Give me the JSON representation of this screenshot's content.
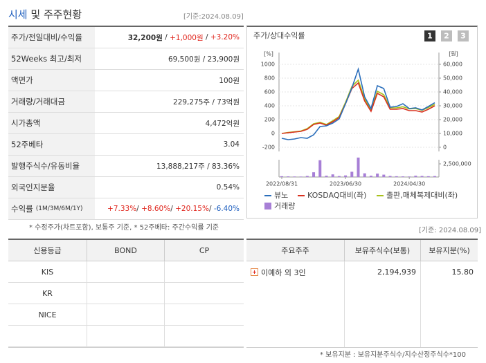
{
  "header": {
    "title_main": "시세",
    "title_rest": "및 주주현황",
    "date": "[기준:2024.08.09]"
  },
  "quote_table": {
    "rows": [
      {
        "label": "주가/전일대비/수익률",
        "parts": [
          {
            "text": "32,200원",
            "bold": true
          },
          {
            "text": " / "
          },
          {
            "text": "+1,000원",
            "color": "#e0261d"
          },
          {
            "text": " / "
          },
          {
            "text": "+3.20%",
            "color": "#e0261d"
          }
        ]
      },
      {
        "label": "52Weeks 최고/최저",
        "parts": [
          {
            "text": "69,500원 / 23,900원"
          }
        ]
      },
      {
        "label": "액면가",
        "parts": [
          {
            "text": "100원"
          }
        ]
      },
      {
        "label": "거래량/거래대금",
        "parts": [
          {
            "text": "229,275주 / 73억원"
          }
        ]
      },
      {
        "label": "시가총액",
        "parts": [
          {
            "text": "4,472억원"
          }
        ]
      },
      {
        "label": "52주베타",
        "parts": [
          {
            "text": "3.04"
          }
        ]
      },
      {
        "label": "발행주식수/유동비율",
        "parts": [
          {
            "text": "13,888,217주 / 83.36%"
          }
        ]
      },
      {
        "label": "외국인지분율",
        "parts": [
          {
            "text": "0.54%"
          }
        ]
      },
      {
        "label": "수익률",
        "label_small": "(1M/3M/6M/1Y)",
        "parts": [
          {
            "text": "+7.33%",
            "color": "#e0261d"
          },
          {
            "text": "/ "
          },
          {
            "text": "+8.60%",
            "color": "#e0261d"
          },
          {
            "text": "/ "
          },
          {
            "text": "+20.15%",
            "color": "#e0261d"
          },
          {
            "text": "/ "
          },
          {
            "text": "-6.40%",
            "color": "#1f5fbf"
          }
        ]
      }
    ]
  },
  "quote_note": "* 수정주가(차트포함), 보통주 기준, * 52주베타: 주간수익률 기준",
  "chart_data": {
    "type": "line",
    "title": "주가/상대수익률",
    "buttons": [
      "1",
      "2",
      "3"
    ],
    "ylabel": "[%]",
    "y2label": "[원]",
    "x": [
      0,
      1,
      2,
      3,
      4,
      5,
      6,
      7,
      8,
      9,
      10,
      11,
      12,
      13,
      14,
      15,
      16,
      17,
      18,
      19,
      20,
      21,
      22,
      23,
      24
    ],
    "xlim": [
      0,
      24
    ],
    "xticks": [
      {
        "value": 0,
        "label": "2022/08/31"
      },
      {
        "value": 10,
        "label": "2023/06/30"
      },
      {
        "value": 20,
        "label": "2024/04/30"
      }
    ],
    "ylim": [
      -200,
      1000
    ],
    "yticks": [
      -200,
      0,
      200,
      400,
      600,
      800,
      1000
    ],
    "y2lim": [
      0,
      60000
    ],
    "y2ticks": [
      0,
      {
        "value": 10000,
        "label": "10,000"
      },
      {
        "value": 20000,
        "label": "20,000"
      },
      {
        "value": 30000,
        "label": "30,000"
      },
      {
        "value": 40000,
        "label": "40,000"
      },
      {
        "value": 50000,
        "label": "50,000"
      },
      {
        "value": 60000,
        "label": "60,000"
      }
    ],
    "grid": true,
    "series": [
      {
        "name": "뷰노",
        "color": "#2a6ebb",
        "axis": "y2",
        "values": [
          6500,
          5500,
          6000,
          7000,
          6500,
          9000,
          15000,
          15500,
          17500,
          20500,
          31500,
          43000,
          56500,
          36500,
          28000,
          44500,
          42500,
          29000,
          29500,
          31500,
          28000,
          28500,
          27000,
          29500,
          32200
        ]
      },
      {
        "name": "KOSDAQ대비(좌)",
        "color": "#d9311f",
        "values": [
          0,
          10,
          20,
          30,
          60,
          130,
          150,
          120,
          170,
          230,
          430,
          650,
          730,
          470,
          320,
          580,
          530,
          350,
          350,
          360,
          330,
          330,
          310,
          350,
          400
        ]
      },
      {
        "name": "출판,매체복제대비(좌)",
        "color": "#a8c11a",
        "values": [
          0,
          15,
          25,
          35,
          70,
          140,
          160,
          130,
          185,
          245,
          450,
          680,
          770,
          500,
          340,
          610,
          560,
          370,
          370,
          385,
          355,
          360,
          335,
          375,
          420
        ]
      }
    ],
    "volume": {
      "name": "거래량",
      "color": "#a77fd6",
      "lim": [
        0,
        2500000
      ],
      "ticks": [
        {
          "value": 2500000,
          "label": "2,500,000"
        }
      ],
      "values": [
        150000,
        120000,
        100000,
        90000,
        200000,
        900000,
        3200000,
        250000,
        500000,
        180000,
        300000,
        1000000,
        3700000,
        700000,
        250000,
        650000,
        450000,
        200000,
        150000,
        120000,
        100000,
        250000,
        200000,
        150000,
        180000
      ]
    }
  },
  "credit_table": {
    "headers": [
      "신용등급",
      "BOND",
      "CP"
    ],
    "rows": [
      [
        "KIS"
      ],
      [
        "KR"
      ],
      [
        "NICE"
      ]
    ]
  },
  "holder_date": "[기준: 2024.08.09]",
  "holder_table": {
    "headers": [
      "주요주주",
      "보유주식수(보통)",
      "보유지분(%)"
    ],
    "rows": [
      [
        "이예하 외 3인",
        "2,194,939",
        "15.80"
      ]
    ]
  },
  "holder_note": "* 보유지분 : 보유지분주식수/지수산정주식수*100"
}
